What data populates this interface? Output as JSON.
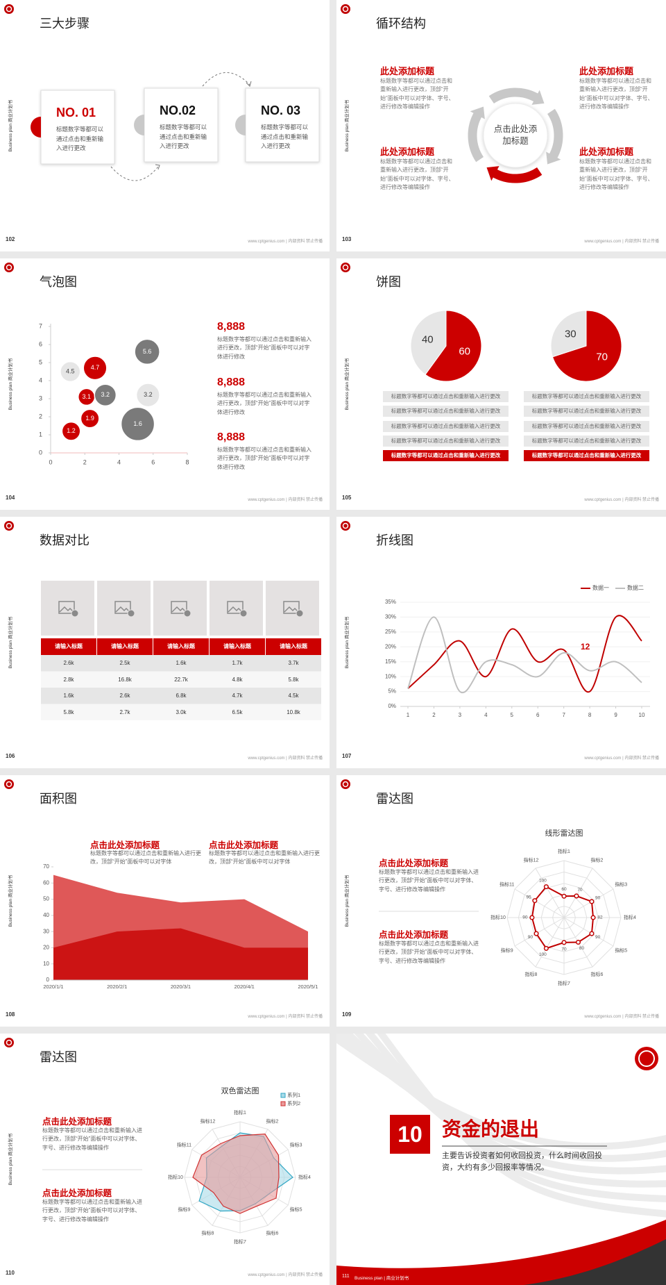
{
  "footer": "www.cptgenius.com | 内部资料 禁止传播",
  "side_label": "Business plan 商业计划书",
  "slides": [
    {
      "page": "102",
      "title": "三大步骤",
      "steps": [
        {
          "label": "NO. 01",
          "text": "标题数字等都可以通过点击和重新输入进行更改"
        },
        {
          "label": "NO.02",
          "text": "标题数字等都可以通过点击和重新输入进行更改"
        },
        {
          "label": "NO. 03",
          "text": "标题数字等都可以通过点击和重新输入进行更改"
        }
      ]
    },
    {
      "page": "103",
      "title": "循环结构",
      "center": "点击此处添加标题",
      "blocks": [
        {
          "heading": "此处添加标题",
          "text": "标题数字等都可以通过点击和重新输入进行更改，顶部“开始”面板中可以对字体、字号、进行修改等编辑操作"
        },
        {
          "heading": "此处添加标题",
          "text": "标题数字等都可以通过点击和重新输入进行更改，顶部“开始”面板中可以对字体、字号、进行修改等编辑操作"
        },
        {
          "heading": "此处添加标题",
          "text": "标题数字等都可以通过点击和重新输入进行更改，顶部“开始”面板中可以对字体、字号、进行修改等编辑操作"
        },
        {
          "heading": "此处添加标题",
          "text": "标题数字等都可以通过点击和重新输入进行更改，顶部“开始”面板中可以对字体、字号、进行修改等编辑操作"
        }
      ]
    },
    {
      "page": "104",
      "title": "气泡图",
      "chart": {
        "type": "bubble",
        "xlim": [
          0,
          8
        ],
        "xticks": [
          0,
          2,
          4,
          6,
          8
        ],
        "ylim": [
          0,
          7
        ],
        "yticks": [
          0,
          1,
          2,
          3,
          4,
          5,
          6,
          7
        ],
        "points": [
          {
            "x": 1.15,
            "y": 4.5,
            "size": 12,
            "color": "#e6e6e6"
          },
          {
            "x": 2.6,
            "y": 4.7,
            "size": 14,
            "color": "#cc0000"
          },
          {
            "x": 2.1,
            "y": 3.1,
            "size": 10,
            "color": "#cc0000"
          },
          {
            "x": 3.2,
            "y": 3.2,
            "size": 13,
            "color": "#7a7a7a"
          },
          {
            "x": 1.2,
            "y": 1.2,
            "size": 11,
            "color": "#cc0000"
          },
          {
            "x": 2.3,
            "y": 1.9,
            "size": 11,
            "color": "#cc0000"
          },
          {
            "x": 5.65,
            "y": 5.6,
            "size": 15,
            "color": "#7a7a7a"
          },
          {
            "x": 5.7,
            "y": 3.2,
            "size": 14,
            "color": "#e6e6e6"
          },
          {
            "x": 5.1,
            "y": 1.6,
            "size": 20,
            "color": "#7a7a7a"
          }
        ]
      },
      "stats": [
        {
          "value": "8,888",
          "text": "标题数字等都可以通过点击和重新输入进行更改，顶部“开始”面板中可以对字体进行修改"
        },
        {
          "value": "8,888",
          "text": "标题数字等都可以通过点击和重新输入进行更改，顶部“开始”面板中可以对字体进行修改"
        },
        {
          "value": "8,888",
          "text": "标题数字等都可以通过点击和重新输入进行更改，顶部“开始”面板中可以对字体进行修改"
        }
      ]
    },
    {
      "page": "105",
      "title": "饼图",
      "charts": [
        {
          "type": "pie",
          "values": [
            60,
            40
          ],
          "colors": [
            "#cc0000",
            "#e6e6e6"
          ]
        },
        {
          "type": "pie",
          "values": [
            70,
            30
          ],
          "colors": [
            "#cc0000",
            "#e6e6e6"
          ]
        }
      ],
      "lists": [
        [
          "标题数字等都可以通过点击和重新输入进行更改",
          "标题数字等都可以通过点击和重新输入进行更改",
          "标题数字等都可以通过点击和重新输入进行更改",
          "标题数字等都可以通过点击和重新输入进行更改",
          "标题数字等都可以通过点击和重新输入进行更改"
        ],
        [
          "标题数字等都可以通过点击和重新输入进行更改",
          "标题数字等都可以通过点击和重新输入进行更改",
          "标题数字等都可以通过点击和重新输入进行更改",
          "标题数字等都可以通过点击和重新输入进行更改",
          "标题数字等都可以通过点击和重新输入进行更改"
        ]
      ]
    },
    {
      "page": "106",
      "title": "数据对比",
      "table": {
        "header": [
          "请输入标题",
          "请输入标题",
          "请输入标题",
          "请输入标题",
          "请输入标题"
        ],
        "rows": [
          [
            "2.6k",
            "2.5k",
            "1.6k",
            "1.7k",
            "3.7k"
          ],
          [
            "2.8k",
            "16.8k",
            "22.7k",
            "4.8k",
            "5.8k"
          ],
          [
            "1.6k",
            "2.6k",
            "6.8k",
            "4.7k",
            "4.5k"
          ],
          [
            "5.8k",
            "2.7k",
            "3.0k",
            "6.5k",
            "10.8k"
          ]
        ]
      }
    },
    {
      "page": "107",
      "title": "折线图",
      "chart": {
        "type": "line",
        "smooth": true,
        "x": [
          1,
          2,
          3,
          4,
          5,
          6,
          7,
          8,
          9,
          10
        ],
        "xlim": [
          1,
          10
        ],
        "xticks": [
          1,
          2,
          3,
          4,
          5,
          6,
          7,
          8,
          9,
          10
        ],
        "ylim": [
          0,
          35
        ],
        "yticks": [
          {
            "value": 0,
            "label": "0%"
          },
          {
            "value": 5,
            "label": "5%"
          },
          {
            "value": 10,
            "label": "10%"
          },
          {
            "value": 15,
            "label": "15%"
          },
          {
            "value": 20,
            "label": "20%"
          },
          {
            "value": 25,
            "label": "25%"
          },
          {
            "value": 30,
            "label": "30%"
          },
          {
            "value": 35,
            "label": "35%"
          }
        ],
        "grid": true,
        "annotation": "12",
        "series": [
          {
            "name": "数据一",
            "color": "#c00000",
            "values": [
              6,
              14,
              22,
              10,
              26,
              15,
              19,
              5,
              30,
              22
            ]
          },
          {
            "name": "数据二",
            "color": "#bfbfbf",
            "values": [
              6,
              30,
              5,
              15,
              14,
              10,
              18,
              12,
              15,
              8
            ]
          }
        ]
      }
    },
    {
      "page": "108",
      "title": "面积图",
      "blocks": [
        {
          "heading": "点击此处添加标题",
          "text": "标题数字等都可以通过点击和重新输入进行更改，顶部“开始”面板中可以对字体"
        },
        {
          "heading": "点击此处添加标题",
          "text": "标题数字等都可以通过点击和重新输入进行更改，顶部“开始”面板中可以对字体"
        }
      ],
      "chart": {
        "type": "area",
        "categories": [
          "2020/1/1",
          "2020/2/1",
          "2020/3/1",
          "2020/4/1",
          "2020/5/1"
        ],
        "ylim": [
          0,
          70
        ],
        "yticks": [
          0,
          10,
          20,
          30,
          40,
          50,
          60,
          70
        ],
        "series": [
          {
            "color": "#dc4646",
            "values": [
              65,
              54,
              48,
              50,
              30
            ]
          },
          {
            "color": "#cc1414",
            "values": [
              20,
              30,
              32,
              20,
              20
            ]
          }
        ]
      }
    },
    {
      "page": "109",
      "title": "雷达图",
      "blocks": [
        {
          "heading": "点击此处添加标题",
          "text": "标题数字等都可以通过点击和重新输入进行更改，顶部“开始”面板中可以对字体、字号、进行修改等编辑操作"
        },
        {
          "heading": "点击此处添加标题",
          "text": "标题数字等都可以通过点击和重新输入进行更改，顶部“开始”面板中可以对字体、字号、进行修改等编辑操作"
        }
      ],
      "chart": {
        "type": "radar",
        "title": "线形雷达图",
        "markers": true,
        "data_labels": true,
        "rlim": [
          0,
          160
        ],
        "categories": [
          "指标1",
          "指标2",
          "指标3",
          "指标4",
          "指标5",
          "指标6",
          "指标7",
          "指标8",
          "指标9",
          "指标10",
          "指标11",
          "指标12"
        ],
        "series": [
          {
            "color": "#c00000",
            "values": [
              60,
              70,
              90,
              82,
              90,
              80,
              70,
              100,
              90,
              90,
              95,
              100
            ]
          }
        ]
      }
    },
    {
      "page": "110",
      "title": "雷达图",
      "blocks": [
        {
          "heading": "点击此处添加标题",
          "text": "标题数字等都可以通过点击和重新输入进行更改，顶部“开始”面板中可以对字体、字号、进行修改等编辑操作"
        },
        {
          "heading": "点击此处添加标题",
          "text": "标题数字等都可以通过点击和重新输入进行更改，顶部“开始”面板中可以对字体、字号、进行修改等编辑操作"
        }
      ],
      "chart": {
        "type": "radar",
        "title": "双色雷达图",
        "rlim": [
          0,
          100
        ],
        "legend": "top-right",
        "categories": [
          "指标1",
          "指标2",
          "指标3",
          "指标4",
          "指标5",
          "指标6",
          "指标7",
          "指标8",
          "指标9",
          "指标10",
          "指标11",
          "指标12"
        ],
        "series": [
          {
            "name": "系列1",
            "color": "#2fa6c4",
            "fill": "#a8dbe8",
            "values": [
              80,
              85,
              70,
              95,
              60,
              55,
              60,
              70,
              85,
              60,
              70,
              65
            ]
          },
          {
            "name": "系列2",
            "color": "#d03030",
            "fill": "#e89a9a",
            "values": [
              75,
              90,
              80,
              70,
              75,
              60,
              65,
              60,
              55,
              85,
              80,
              70
            ]
          }
        ]
      }
    },
    {
      "page": "111",
      "number": "10",
      "title": "资金的退出",
      "subtitle": "主要告诉投资者如何收回投资，什么时间收回投资，大约有多少回报率等情况。",
      "footer": "Business plan | 商业计划书"
    }
  ]
}
